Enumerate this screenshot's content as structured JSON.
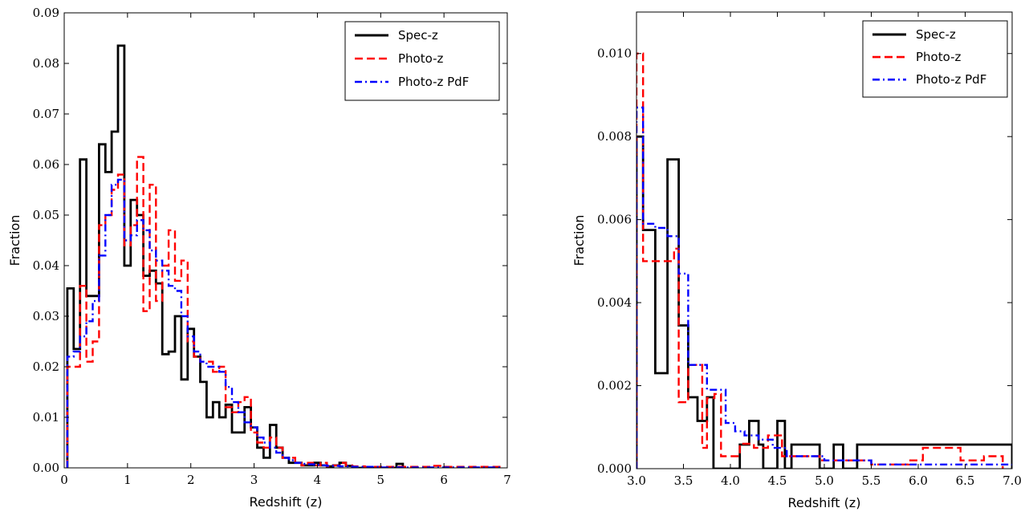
{
  "chart_data": [
    {
      "type": "line",
      "step": true,
      "xlabel": "Redshift (z)",
      "ylabel": "Fraction",
      "xlim": [
        0,
        7
      ],
      "ylim": [
        0,
        0.09
      ],
      "xticks": [
        0,
        1,
        2,
        3,
        4,
        5,
        6,
        7
      ],
      "xtick_labels": [
        "0",
        "1",
        "2",
        "3",
        "4",
        "5",
        "6",
        "7"
      ],
      "yticks": [
        0,
        0.01,
        0.02,
        0.03,
        0.04,
        0.05,
        0.06,
        0.07,
        0.08,
        0.09
      ],
      "ytick_labels": [
        "0.00",
        "0.01",
        "0.02",
        "0.03",
        "0.04",
        "0.05",
        "0.06",
        "0.07",
        "0.08",
        "0.09"
      ],
      "grid": false,
      "legend": "top-right",
      "series": [
        {
          "name": "Spec-z",
          "color": "#000000",
          "dash": "",
          "edges": [
            0.05,
            0.15,
            0.25,
            0.35,
            0.45,
            0.55,
            0.65,
            0.75,
            0.85,
            0.95,
            1.05,
            1.15,
            1.25,
            1.35,
            1.45,
            1.55,
            1.65,
            1.75,
            1.85,
            1.95,
            2.05,
            2.15,
            2.25,
            2.35,
            2.45,
            2.55,
            2.65,
            2.75,
            2.85,
            2.95,
            3.05,
            3.15,
            3.25,
            3.35,
            3.45,
            3.55,
            3.65,
            3.75,
            3.85,
            3.95,
            4.05,
            4.15,
            4.25,
            4.35,
            4.45,
            4.55,
            5.25,
            5.35
          ],
          "values": [
            0.0355,
            0.0235,
            0.061,
            0.034,
            0.034,
            0.064,
            0.0585,
            0.0665,
            0.0835,
            0.04,
            0.053,
            0.05,
            0.038,
            0.039,
            0.0365,
            0.0225,
            0.023,
            0.03,
            0.0175,
            0.0275,
            0.022,
            0.017,
            0.01,
            0.013,
            0.01,
            0.0125,
            0.007,
            0.007,
            0.012,
            0.008,
            0.004,
            0.002,
            0.0085,
            0.004,
            0.002,
            0.001,
            0.001,
            0.0005,
            0.0005,
            0.001,
            0.0005,
            0.0003,
            0.0005,
            0.001,
            0.0004,
            0.0,
            0.0008,
            0.0
          ]
        },
        {
          "name": "Photo-z",
          "color": "#ff0000",
          "dash": "10,5",
          "edges": [
            0.05,
            0.15,
            0.25,
            0.35,
            0.45,
            0.55,
            0.65,
            0.75,
            0.85,
            0.95,
            1.05,
            1.15,
            1.25,
            1.35,
            1.45,
            1.55,
            1.65,
            1.75,
            1.85,
            1.95,
            2.05,
            2.15,
            2.25,
            2.35,
            2.45,
            2.55,
            2.65,
            2.75,
            2.85,
            2.95,
            3.05,
            3.15,
            3.25,
            3.35,
            3.45,
            3.55,
            3.65,
            3.75,
            3.85,
            3.95,
            4.05,
            4.15,
            4.25,
            4.35,
            4.45,
            4.55,
            4.75,
            5.0,
            5.5,
            5.8,
            6.0,
            6.9
          ],
          "values": [
            0.02,
            0.02,
            0.036,
            0.021,
            0.025,
            0.048,
            0.05,
            0.055,
            0.058,
            0.044,
            0.048,
            0.0615,
            0.031,
            0.056,
            0.033,
            0.04,
            0.047,
            0.037,
            0.041,
            0.025,
            0.022,
            0.021,
            0.021,
            0.019,
            0.02,
            0.012,
            0.011,
            0.013,
            0.014,
            0.007,
            0.005,
            0.004,
            0.006,
            0.004,
            0.002,
            0.002,
            0.001,
            0.0005,
            0.001,
            0.0005,
            0.001,
            0.0003,
            0.0005,
            0.001,
            0.0005,
            0.0003,
            0.0002,
            0.0002,
            0.0002,
            0.0004,
            0.0002,
            0.0
          ]
        },
        {
          "name": "Photo-z PdF",
          "color": "#0000ff",
          "dash": "9,4,2,4",
          "edges": [
            0.05,
            0.15,
            0.25,
            0.35,
            0.45,
            0.55,
            0.65,
            0.75,
            0.85,
            0.95,
            1.05,
            1.15,
            1.25,
            1.35,
            1.45,
            1.55,
            1.65,
            1.75,
            1.85,
            1.95,
            2.05,
            2.15,
            2.25,
            2.35,
            2.45,
            2.55,
            2.65,
            2.75,
            2.85,
            2.95,
            3.05,
            3.15,
            3.25,
            3.35,
            3.45,
            3.55,
            3.65,
            3.75,
            3.85,
            3.95,
            4.05,
            4.15,
            4.25,
            4.35,
            4.45,
            4.55,
            5.0,
            6.9
          ],
          "values": [
            0.022,
            0.023,
            0.026,
            0.029,
            0.033,
            0.042,
            0.05,
            0.056,
            0.057,
            0.045,
            0.046,
            0.049,
            0.047,
            0.043,
            0.041,
            0.039,
            0.036,
            0.035,
            0.03,
            0.026,
            0.023,
            0.021,
            0.02,
            0.02,
            0.019,
            0.016,
            0.013,
            0.011,
            0.009,
            0.008,
            0.006,
            0.005,
            0.004,
            0.003,
            0.002,
            0.0015,
            0.001,
            0.0008,
            0.0007,
            0.0006,
            0.0005,
            0.0004,
            0.0004,
            0.0003,
            0.0003,
            0.0002,
            0.0001,
            0.0
          ]
        }
      ]
    },
    {
      "type": "line",
      "step": true,
      "xlabel": "Redshift (z)",
      "ylabel": "Fraction",
      "xlim": [
        3.0,
        7.0
      ],
      "ylim": [
        0,
        0.011
      ],
      "xticks": [
        3.0,
        3.5,
        4.0,
        4.5,
        5.0,
        5.5,
        6.0,
        6.5,
        7.0
      ],
      "xtick_labels": [
        "3.0",
        "3.5",
        "4.0",
        "4.5",
        "5.0",
        "5.5",
        "6.0",
        "6.5",
        "7.0"
      ],
      "yticks": [
        0,
        0.002,
        0.004,
        0.006,
        0.008,
        0.01
      ],
      "ytick_labels": [
        "0.000",
        "0.002",
        "0.004",
        "0.006",
        "0.008",
        "0.010"
      ],
      "grid": false,
      "legend": "top-right",
      "series": [
        {
          "name": "Spec-z",
          "color": "#000000",
          "dash": "",
          "edges": [
            3.0,
            3.07,
            3.2,
            3.33,
            3.45,
            3.55,
            3.65,
            3.75,
            3.82,
            4.1,
            4.2,
            4.3,
            4.35,
            4.5,
            4.58,
            4.65,
            4.95,
            5.1,
            5.2,
            5.35,
            7.0
          ],
          "values": [
            0.008,
            0.00575,
            0.0023,
            0.00745,
            0.00345,
            0.00172,
            0.00115,
            0.00172,
            0.0,
            0.00058,
            0.00115,
            0.00058,
            0.0,
            0.00115,
            0.0,
            0.00058,
            0.0,
            0.00058,
            0.0,
            0.00058,
            0.0
          ]
        },
        {
          "name": "Photo-z",
          "color": "#ff0000",
          "dash": "10,5",
          "edges": [
            3.0,
            3.07,
            3.2,
            3.4,
            3.45,
            3.55,
            3.62,
            3.7,
            3.75,
            3.83,
            3.9,
            4.1,
            4.25,
            4.4,
            4.55,
            4.95,
            5.5,
            5.9,
            6.05,
            6.45,
            6.7,
            6.9
          ],
          "values": [
            0.01,
            0.005,
            0.005,
            0.0053,
            0.0016,
            0.0025,
            0.0025,
            0.0005,
            0.0017,
            0.0018,
            0.0003,
            0.0006,
            0.0005,
            0.0008,
            0.0003,
            0.0002,
            0.0001,
            0.0002,
            0.0005,
            0.0002,
            0.0003,
            0.0
          ]
        },
        {
          "name": "Photo-z PdF",
          "color": "#0000ff",
          "dash": "9,4,2,4",
          "edges": [
            3.0,
            3.07,
            3.2,
            3.33,
            3.45,
            3.55,
            3.65,
            3.75,
            3.85,
            3.95,
            4.05,
            4.15,
            4.3,
            4.45,
            4.6,
            5.0,
            5.5,
            6.2,
            7.0
          ],
          "values": [
            0.0087,
            0.0059,
            0.0058,
            0.0056,
            0.0047,
            0.0025,
            0.0025,
            0.0019,
            0.0019,
            0.0011,
            0.0009,
            0.0008,
            0.0007,
            0.0005,
            0.0003,
            0.0002,
            0.0001,
            0.0001,
            0.0
          ]
        }
      ]
    }
  ]
}
